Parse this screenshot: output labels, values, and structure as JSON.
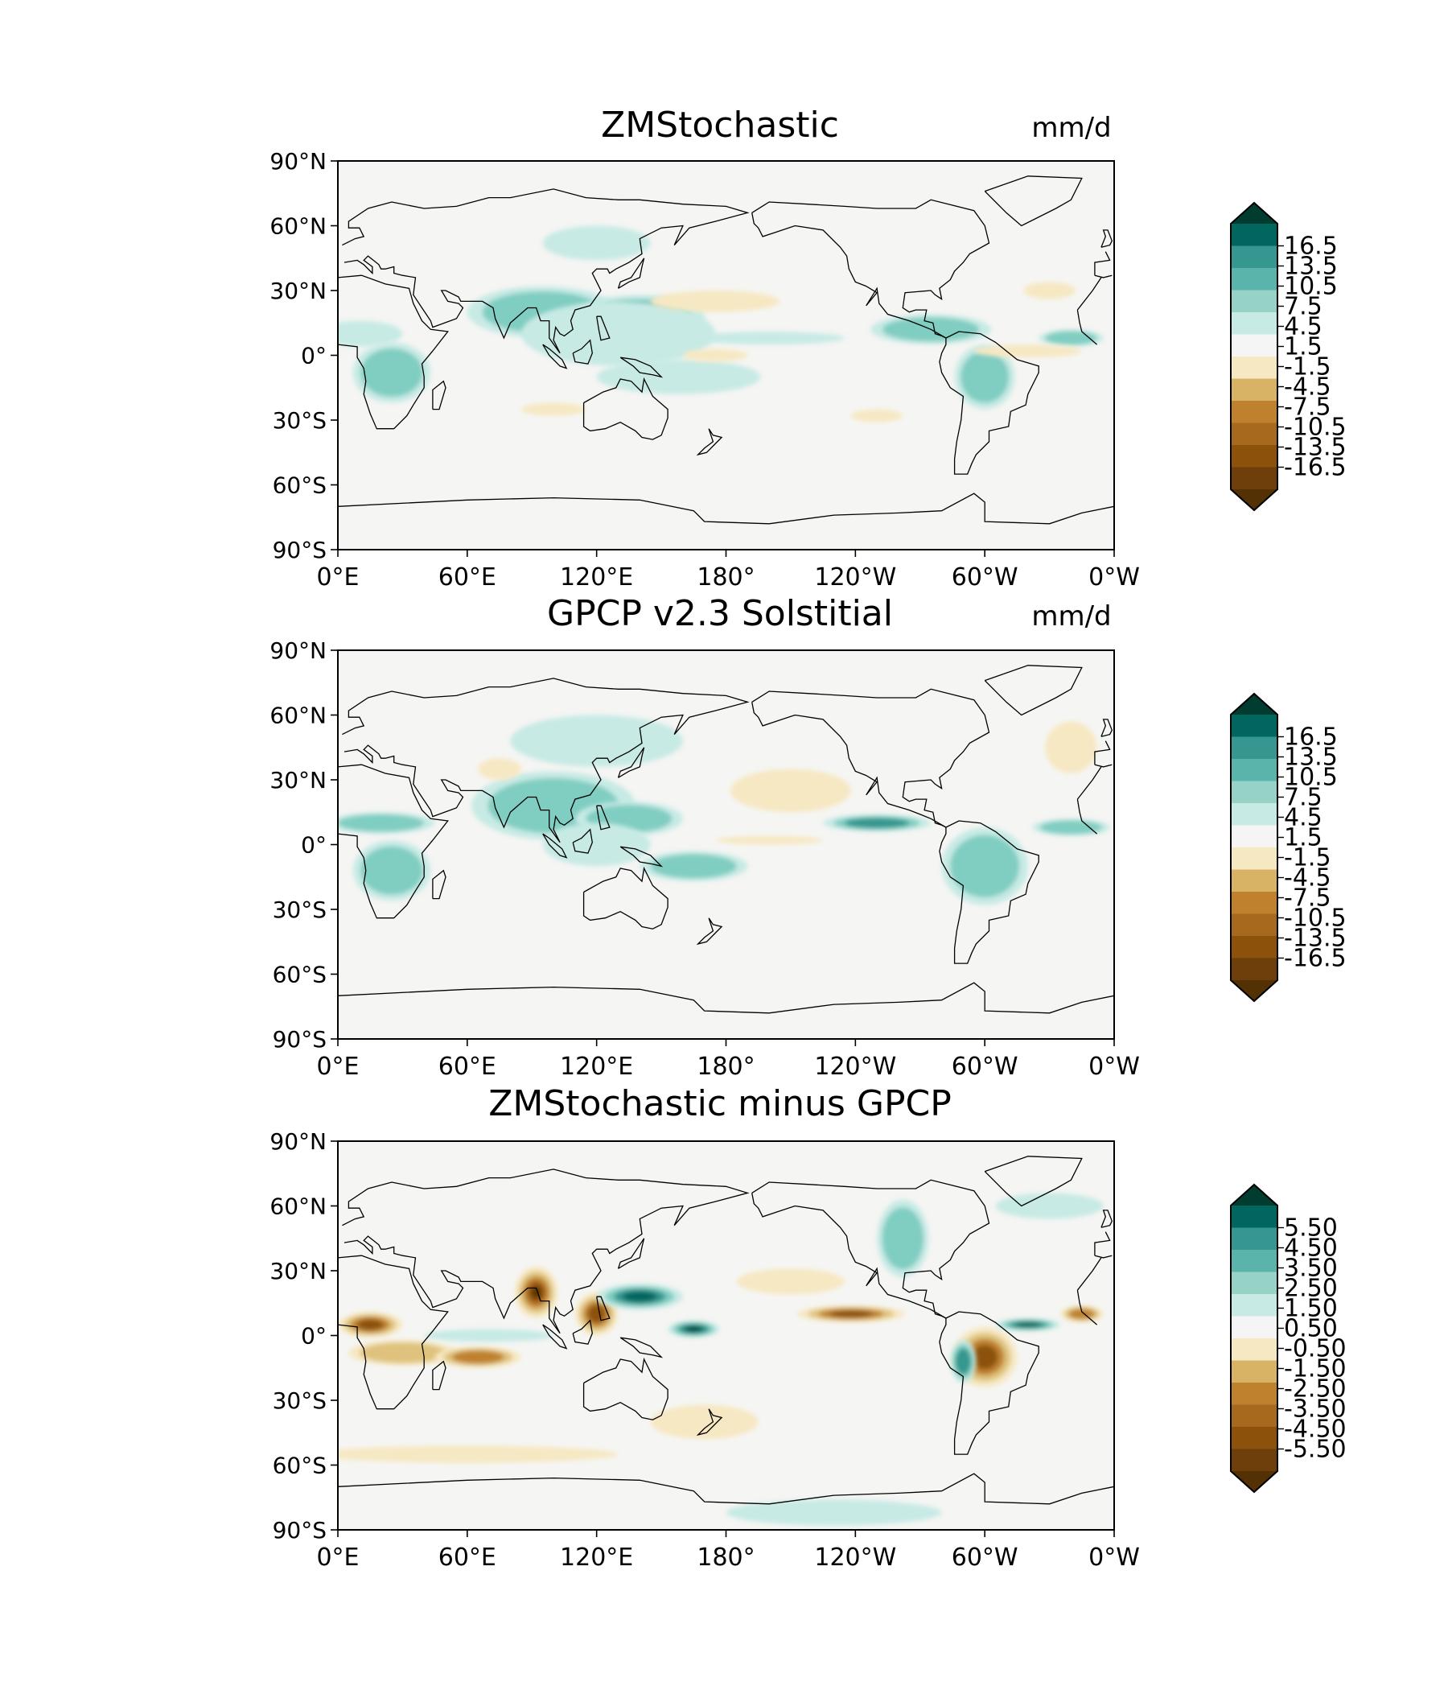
{
  "figure": {
    "panels": [
      {
        "id": "zmstochastic",
        "title": "ZMStochastic",
        "units": "mm/d",
        "lat_ticks": [
          "90°N",
          "60°N",
          "30°N",
          "0°",
          "30°S",
          "60°S",
          "90°S"
        ],
        "lon_ticks": [
          "0°E",
          "60°E",
          "120°E",
          "180°",
          "120°W",
          "60°W",
          "0°W"
        ],
        "colorbar": {
          "tick_labels": [
            "16.5",
            "13.5",
            "10.5",
            "7.5",
            "4.5",
            "1.5",
            "-1.5",
            "-4.5",
            "-7.5",
            "-10.5",
            "-13.5",
            "-16.5"
          ],
          "levels": [
            -16.5,
            -13.5,
            -10.5,
            -7.5,
            -4.5,
            -1.5,
            1.5,
            4.5,
            7.5,
            10.5,
            13.5,
            16.5
          ],
          "extend": "both"
        },
        "features": [
          {
            "type": "wet",
            "lon": 85,
            "lat": 24,
            "rlon": 14,
            "rlat": 6,
            "level": 5
          },
          {
            "type": "wet",
            "lon": 95,
            "lat": 20,
            "rlon": 35,
            "rlat": 12,
            "level": 2
          },
          {
            "type": "wet",
            "lon": 140,
            "lat": 18,
            "rlon": 30,
            "rlat": 10,
            "level": 3
          },
          {
            "type": "wet",
            "lon": 130,
            "lat": 10,
            "rlon": 45,
            "rlat": 15,
            "level": 1
          },
          {
            "type": "wet",
            "lon": 158,
            "lat": -10,
            "rlon": 38,
            "rlat": 8,
            "level": 1
          },
          {
            "type": "wet",
            "lon": 25,
            "lat": -8,
            "rlon": 18,
            "rlat": 14,
            "level": 2
          },
          {
            "type": "wet",
            "lon": 10,
            "lat": 10,
            "rlon": 20,
            "rlat": 6,
            "level": 1
          },
          {
            "type": "wet",
            "lon": 275,
            "lat": 12,
            "rlon": 28,
            "rlat": 7,
            "level": 2
          },
          {
            "type": "wet",
            "lon": 300,
            "lat": -10,
            "rlon": 14,
            "rlat": 15,
            "level": 2
          },
          {
            "type": "wet",
            "lon": 340,
            "lat": 8,
            "rlon": 15,
            "rlat": 4,
            "level": 2
          },
          {
            "type": "wet",
            "lon": 200,
            "lat": 8,
            "rlon": 35,
            "rlat": 3,
            "level": 1
          },
          {
            "type": "wet",
            "lon": 120,
            "lat": 52,
            "rlon": 25,
            "rlat": 8,
            "level": 1
          },
          {
            "type": "dry",
            "lon": 175,
            "lat": 25,
            "rlon": 30,
            "rlat": 5,
            "level": 1
          },
          {
            "type": "dry",
            "lon": 175,
            "lat": 0,
            "rlon": 15,
            "rlat": 3,
            "level": 1
          },
          {
            "type": "dry",
            "lon": 320,
            "lat": 2,
            "rlon": 25,
            "rlat": 3,
            "level": 1
          },
          {
            "type": "dry",
            "lon": 100,
            "lat": -25,
            "rlon": 15,
            "rlat": 3,
            "level": 1
          },
          {
            "type": "dry",
            "lon": 250,
            "lat": -28,
            "rlon": 12,
            "rlat": 3,
            "level": 1
          },
          {
            "type": "dry",
            "lon": 330,
            "lat": 30,
            "rlon": 12,
            "rlat": 4,
            "level": 1
          }
        ]
      },
      {
        "id": "gpcp",
        "title": "GPCP v2.3 Solstitial",
        "units": "mm/d",
        "lat_ticks": [
          "90°N",
          "60°N",
          "30°N",
          "0°",
          "30°S",
          "60°S",
          "90°S"
        ],
        "lon_ticks": [
          "0°E",
          "60°E",
          "120°E",
          "180°",
          "120°W",
          "60°W",
          "0°W"
        ],
        "colorbar": {
          "tick_labels": [
            "16.5",
            "13.5",
            "10.5",
            "7.5",
            "4.5",
            "1.5",
            "-1.5",
            "-4.5",
            "-7.5",
            "-10.5",
            "-13.5",
            "-16.5"
          ],
          "levels": [
            -16.5,
            -13.5,
            -10.5,
            -7.5,
            -4.5,
            -1.5,
            1.5,
            4.5,
            7.5,
            10.5,
            13.5,
            16.5
          ],
          "extend": "both"
        },
        "features": [
          {
            "type": "wet",
            "lon": 90,
            "lat": 22,
            "rlon": 18,
            "rlat": 10,
            "level": 4
          },
          {
            "type": "wet",
            "lon": 100,
            "lat": 18,
            "rlon": 38,
            "rlat": 16,
            "level": 2
          },
          {
            "type": "wet",
            "lon": 135,
            "lat": 12,
            "rlon": 25,
            "rlat": 8,
            "level": 2
          },
          {
            "type": "wet",
            "lon": 120,
            "lat": 0,
            "rlon": 25,
            "rlat": 10,
            "level": 1
          },
          {
            "type": "wet",
            "lon": 165,
            "lat": -10,
            "rlon": 25,
            "rlat": 7,
            "level": 2
          },
          {
            "type": "wet",
            "lon": 20,
            "lat": 10,
            "rlon": 25,
            "rlat": 5,
            "level": 2
          },
          {
            "type": "wet",
            "lon": 25,
            "lat": -12,
            "rlon": 18,
            "rlat": 14,
            "level": 2
          },
          {
            "type": "wet",
            "lon": 250,
            "lat": 10,
            "rlon": 25,
            "rlat": 4,
            "level": 3
          },
          {
            "type": "wet",
            "lon": 300,
            "lat": -10,
            "rlon": 20,
            "rlat": 18,
            "level": 2
          },
          {
            "type": "wet",
            "lon": 340,
            "lat": 8,
            "rlon": 18,
            "rlat": 4,
            "level": 2
          },
          {
            "type": "wet",
            "lon": 120,
            "lat": 48,
            "rlon": 40,
            "rlat": 12,
            "level": 1
          },
          {
            "type": "dry",
            "lon": 210,
            "lat": 25,
            "rlon": 28,
            "rlat": 10,
            "level": 1
          },
          {
            "type": "dry",
            "lon": 340,
            "lat": 45,
            "rlon": 12,
            "rlat": 12,
            "level": 1
          },
          {
            "type": "dry",
            "lon": 200,
            "lat": 2,
            "rlon": 25,
            "rlat": 2,
            "level": 1
          },
          {
            "type": "dry",
            "lon": 75,
            "lat": 35,
            "rlon": 10,
            "rlat": 5,
            "level": 1
          }
        ]
      },
      {
        "id": "difference",
        "title": "ZMStochastic minus GPCP",
        "units": "",
        "lat_ticks": [
          "90°N",
          "60°N",
          "30°N",
          "0°",
          "30°S",
          "60°S",
          "90°S"
        ],
        "lon_ticks": [
          "0°E",
          "60°E",
          "120°E",
          "180°",
          "120°W",
          "60°W",
          "0°W"
        ],
        "colorbar": {
          "tick_labels": [
            "5.50",
            "4.50",
            "3.50",
            "2.50",
            "1.50",
            "0.50",
            "-0.50",
            "-1.50",
            "-2.50",
            "-3.50",
            "-4.50",
            "-5.50"
          ],
          "levels": [
            -5.5,
            -4.5,
            -3.5,
            -2.5,
            -1.5,
            -0.5,
            0.5,
            1.5,
            2.5,
            3.5,
            4.5,
            5.5
          ],
          "extend": "both"
        },
        "features": [
          {
            "type": "dry",
            "lon": 15,
            "lat": 5,
            "rlon": 15,
            "rlat": 6,
            "level": 4
          },
          {
            "type": "dry",
            "lon": 30,
            "lat": -8,
            "rlon": 25,
            "rlat": 6,
            "level": 2
          },
          {
            "type": "dry",
            "lon": 65,
            "lat": -10,
            "rlon": 20,
            "rlat": 5,
            "level": 3
          },
          {
            "type": "dry",
            "lon": 92,
            "lat": 20,
            "rlon": 10,
            "rlat": 12,
            "level": 5
          },
          {
            "type": "dry",
            "lon": 120,
            "lat": 10,
            "rlon": 10,
            "rlat": 10,
            "level": 4
          },
          {
            "type": "wet",
            "lon": 140,
            "lat": 18,
            "rlon": 20,
            "rlat": 6,
            "level": 4
          },
          {
            "type": "wet",
            "lon": 165,
            "lat": 3,
            "rlon": 12,
            "rlat": 4,
            "level": 5
          },
          {
            "type": "dry",
            "lon": 238,
            "lat": 10,
            "rlon": 25,
            "rlat": 4,
            "level": 4
          },
          {
            "type": "dry",
            "lon": 300,
            "lat": -10,
            "rlon": 15,
            "rlat": 14,
            "level": 4
          },
          {
            "type": "wet",
            "lon": 290,
            "lat": -12,
            "rlon": 6,
            "rlat": 10,
            "level": 3
          },
          {
            "type": "wet",
            "lon": 320,
            "lat": 5,
            "rlon": 15,
            "rlat": 3,
            "level": 4
          },
          {
            "type": "dry",
            "lon": 345,
            "lat": 10,
            "rlon": 10,
            "rlat": 4,
            "level": 3
          },
          {
            "type": "wet",
            "lon": 262,
            "lat": 45,
            "rlon": 12,
            "rlat": 18,
            "level": 2
          },
          {
            "type": "dry",
            "lon": 170,
            "lat": -40,
            "rlon": 25,
            "rlat": 8,
            "level": 1
          },
          {
            "type": "dry",
            "lon": 60,
            "lat": -55,
            "rlon": 70,
            "rlat": 4,
            "level": 1
          },
          {
            "type": "wet",
            "lon": 230,
            "lat": -82,
            "rlon": 50,
            "rlat": 6,
            "level": 1
          },
          {
            "type": "wet",
            "lon": 70,
            "lat": 0,
            "rlon": 30,
            "rlat": 3,
            "level": 1
          },
          {
            "type": "dry",
            "lon": 210,
            "lat": 25,
            "rlon": 25,
            "rlat": 6,
            "level": 1
          },
          {
            "type": "wet",
            "lon": 330,
            "lat": 60,
            "rlon": 25,
            "rlat": 6,
            "level": 1
          }
        ]
      }
    ]
  }
}
